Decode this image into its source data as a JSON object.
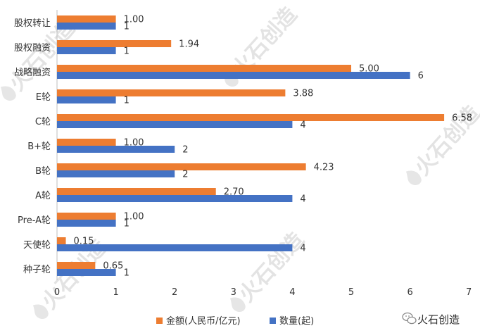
{
  "chart_data": {
    "type": "bar",
    "orientation": "horizontal",
    "categories": [
      "股权转让",
      "股权融资",
      "战略融资",
      "E轮",
      "C轮",
      "B+轮",
      "B轮",
      "A轮",
      "Pre-A轮",
      "天使轮",
      "种子轮"
    ],
    "series": [
      {
        "name": "金额(人民币/亿元)",
        "color": "#ED7D31",
        "values": [
          1.0,
          1.94,
          5.0,
          3.88,
          6.58,
          1.0,
          4.23,
          2.7,
          1.0,
          0.15,
          0.65
        ],
        "labels": [
          "1.00",
          "1.94",
          "5.00",
          "3.88",
          "6.58",
          "1.00",
          "4.23",
          "2.70",
          "1.00",
          "0.15",
          "0.65"
        ]
      },
      {
        "name": "数量(起)",
        "color": "#4472C4",
        "values": [
          1,
          1,
          6,
          1,
          4,
          2,
          2,
          4,
          1,
          4,
          1
        ],
        "labels": [
          "1",
          "1",
          "6",
          "1",
          "4",
          "2",
          "2",
          "4",
          "1",
          "4",
          "1"
        ]
      }
    ],
    "xlim": [
      0,
      7
    ],
    "xticks": [
      "0",
      "1",
      "2",
      "3",
      "4",
      "5",
      "6",
      "7"
    ],
    "legend_position": "bottom",
    "grid": false
  },
  "watermark": {
    "text": "火石创造",
    "icon": "flame-icon"
  },
  "brand": {
    "text": "火石创造",
    "icon": "wechat-icon"
  }
}
